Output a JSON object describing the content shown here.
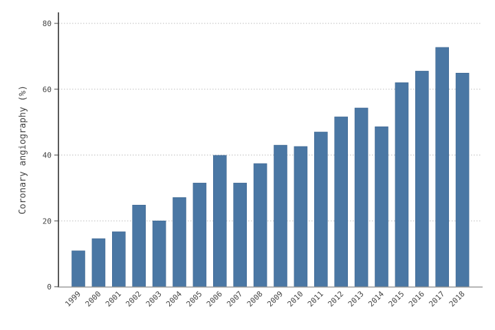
{
  "chart_data": {
    "type": "bar",
    "title": "",
    "xlabel": "",
    "ylabel": "Coronary angiography (%)",
    "ylim": [
      0,
      80
    ],
    "yticks": [
      0,
      20,
      40,
      60,
      80
    ],
    "grid": "horizontal dotted",
    "bar_color": "#4a77a4",
    "categories": [
      "1999",
      "2000",
      "2001",
      "2002",
      "2003",
      "2004",
      "2005",
      "2006",
      "2007",
      "2008",
      "2009",
      "2010",
      "2011",
      "2012",
      "2013",
      "2014",
      "2015",
      "2016",
      "2017",
      "2018"
    ],
    "values": [
      10.9,
      14.6,
      16.7,
      24.8,
      20.0,
      27.1,
      31.5,
      39.9,
      31.5,
      37.4,
      43.0,
      42.6,
      47.0,
      51.6,
      54.3,
      48.6,
      62.0,
      65.5,
      72.7,
      64.9
    ]
  }
}
